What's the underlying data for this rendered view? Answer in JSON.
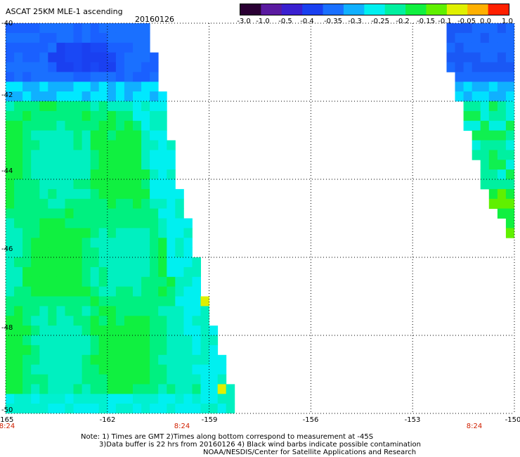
{
  "header": {
    "title": "ASCAT 25KM MLE-1 ascending",
    "date": "20160126"
  },
  "colorbar": {
    "tick_labels": [
      "-3.0",
      "-1.0",
      "-0.5",
      "-0.4",
      "-0.35",
      "-0.3",
      "-0.25",
      "-0.2",
      "-0.15",
      "-0.1",
      "-0.05",
      "0.0",
      "1.0"
    ],
    "colors": [
      "#2a0033",
      "#5a1aa0",
      "#3a20d0",
      "#1a40f0",
      "#1a70ff",
      "#10b0ff",
      "#00f0f0",
      "#00f0a0",
      "#10f040",
      "#60f000",
      "#e0f000",
      "#ffb000",
      "#ff2000"
    ]
  },
  "map": {
    "lon_range": [
      -165,
      -150
    ],
    "lat_range": [
      -50,
      -40
    ],
    "lat_labels": [
      "-40",
      "-42",
      "-44",
      "-46",
      "-48",
      "-50"
    ],
    "lon_labels": [
      "-165",
      "-162",
      "-159",
      "-156",
      "-153",
      "-150"
    ],
    "time_labels": [
      "8:24",
      "8:24",
      "8:24"
    ],
    "time_label_lons": [
      -165,
      -160,
      -151.8
    ],
    "swaths": [
      {
        "name": "left-swath",
        "lon_west": -165,
        "east_edge": [
          [
            -40,
            -160.9
          ],
          [
            -41.6,
            -160.5
          ],
          [
            -44,
            -160.0
          ],
          [
            -45.5,
            -159.6
          ],
          [
            -47,
            -159.2
          ],
          [
            -48.5,
            -158.7
          ],
          [
            -50,
            -158.2
          ]
        ]
      },
      {
        "name": "right-swath",
        "lon_east": -150,
        "west_edge": [
          [
            -40,
            -152.2
          ],
          [
            -41.5,
            -151.9
          ],
          [
            -43,
            -151.4
          ],
          [
            -44.5,
            -150.8
          ],
          [
            -45.8,
            -150.0
          ]
        ]
      }
    ]
  },
  "notes": [
    "Note: 1) Times are GMT 2)Times along bottom correspond to measurement at -45S",
    "3)Data buffer is 22 hrs from 20160126 4) Black wind barbs indicate possible contamination",
    "NOAA/NESDIS/Center for Satellite Applications and Research"
  ]
}
